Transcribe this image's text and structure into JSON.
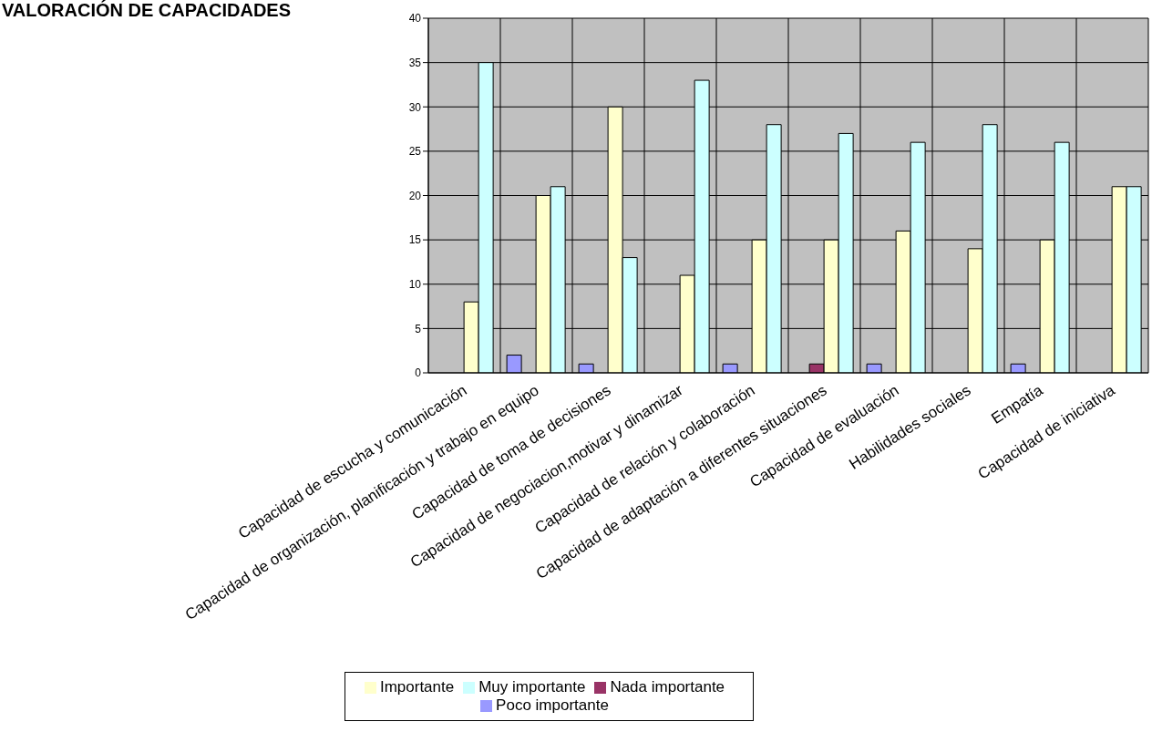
{
  "chart_data": {
    "type": "bar",
    "title": "VALORACIÓN DE CAPACIDADES",
    "categories": [
      "Capacidad de escucha y comunicación",
      "Capacidad de organización, planificación y trabajo en equipo",
      "Capacidad de toma de decisiones",
      "Capacidad de negociacion,motivar y dinamizar",
      "Capacidad de relación y colaboración",
      "Capacidad de adaptación a diferentes situaciones",
      "Capacidad de evaluación",
      "Habilidades sociales",
      "Empatía",
      "Capacidad de iniciativa"
    ],
    "series": [
      {
        "name": "Poco importante",
        "color": "#9999ff",
        "values": [
          null,
          2,
          1,
          null,
          1,
          null,
          1,
          null,
          1,
          null
        ]
      },
      {
        "name": "Nada importante",
        "color": "#993366",
        "values": [
          null,
          null,
          null,
          null,
          null,
          1,
          null,
          null,
          null,
          null
        ]
      },
      {
        "name": "Importante",
        "color": "#ffffcc",
        "values": [
          8,
          20,
          30,
          11,
          15,
          15,
          16,
          14,
          15,
          21
        ]
      },
      {
        "name": "Muy importante",
        "color": "#ccffff",
        "values": [
          35,
          21,
          13,
          33,
          28,
          27,
          26,
          28,
          26,
          21
        ]
      }
    ],
    "ylim": [
      0,
      40
    ],
    "yticks": [
      0,
      5,
      10,
      15,
      20,
      25,
      30,
      35,
      40
    ],
    "grid": true,
    "legend": "bottom"
  }
}
